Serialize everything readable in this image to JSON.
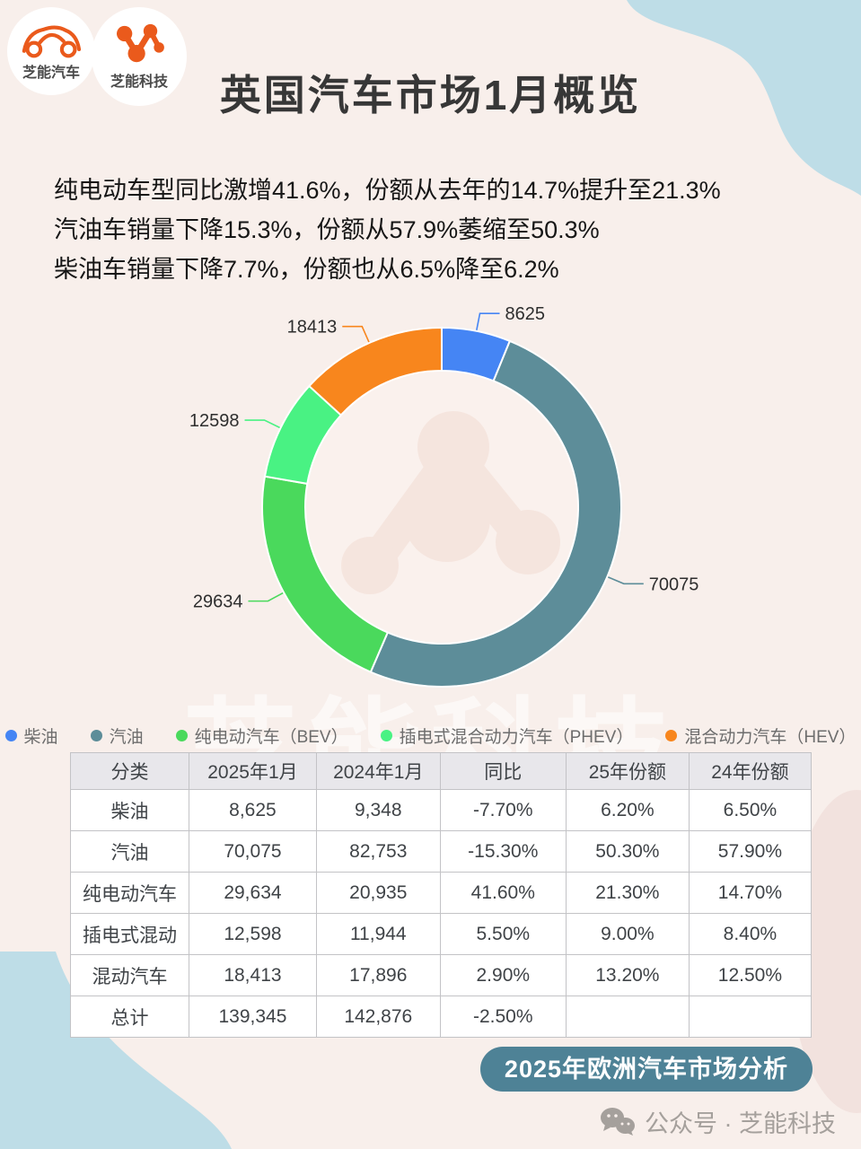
{
  "header": {
    "title": "英国汽车市场1月概览",
    "logo1": {
      "label": "芝能汽车"
    },
    "logo2": {
      "label": "芝能科技"
    }
  },
  "summary": {
    "lines": [
      "纯电动车型同比激增41.6%，份额从去年的14.7%提升至21.3%",
      "汽油车销量下降15.3%，份额从57.9%萎缩至50.3%",
      "柴油车销量下降7.7%，份额也从6.5%降至6.2%"
    ]
  },
  "chart_data": {
    "type": "pie",
    "subtype": "donut",
    "categories": [
      "柴油",
      "汽油",
      "纯电动汽车（BEV）",
      "插电式混合动力汽车（PHEV）",
      "混合动力汽车（HEV）"
    ],
    "values": [
      8625,
      70075,
      29634,
      12598,
      18413
    ],
    "total": 139345,
    "colors": [
      "#4585f4",
      "#5d8d99",
      "#4ad95c",
      "#49f283",
      "#f8861d"
    ],
    "start_angle_deg": 0,
    "direction": "clockwise",
    "legend_position": "bottom",
    "data_labels": [
      "8625",
      "70075",
      "29634",
      "12598",
      "18413"
    ]
  },
  "table": {
    "headers": [
      "分类",
      "2025年1月",
      "2024年1月",
      "同比",
      "25年份额",
      "24年份额"
    ],
    "rows": [
      [
        "柴油",
        "8,625",
        "9,348",
        "-7.70%",
        "6.20%",
        "6.50%"
      ],
      [
        "汽油",
        "70,075",
        "82,753",
        "-15.30%",
        "50.30%",
        "57.90%"
      ],
      [
        "纯电动汽车",
        "29,634",
        "20,935",
        "41.60%",
        "21.30%",
        "14.70%"
      ],
      [
        "插电式混动",
        "12,598",
        "11,944",
        "5.50%",
        "9.00%",
        "8.40%"
      ],
      [
        "混动汽车",
        "18,413",
        "17,896",
        "2.90%",
        "13.20%",
        "12.50%"
      ],
      [
        "总计",
        "139,345",
        "142,876",
        "-2.50%",
        "",
        ""
      ]
    ]
  },
  "badge": {
    "label": "2025年欧洲汽车市场分析"
  },
  "footer": {
    "text": "公众号 · 芝能科技",
    "icon": "wechat-icon"
  },
  "watermark": {
    "text": "芝能科技"
  },
  "colors": {
    "background": "#f8efeb",
    "blob_blue": "#bedde7",
    "badge_teal": "#4e8296",
    "table_header_bg": "#e8e7eb",
    "logo_orange": "#ea5a1c",
    "footer_gray": "#a5a09c"
  }
}
